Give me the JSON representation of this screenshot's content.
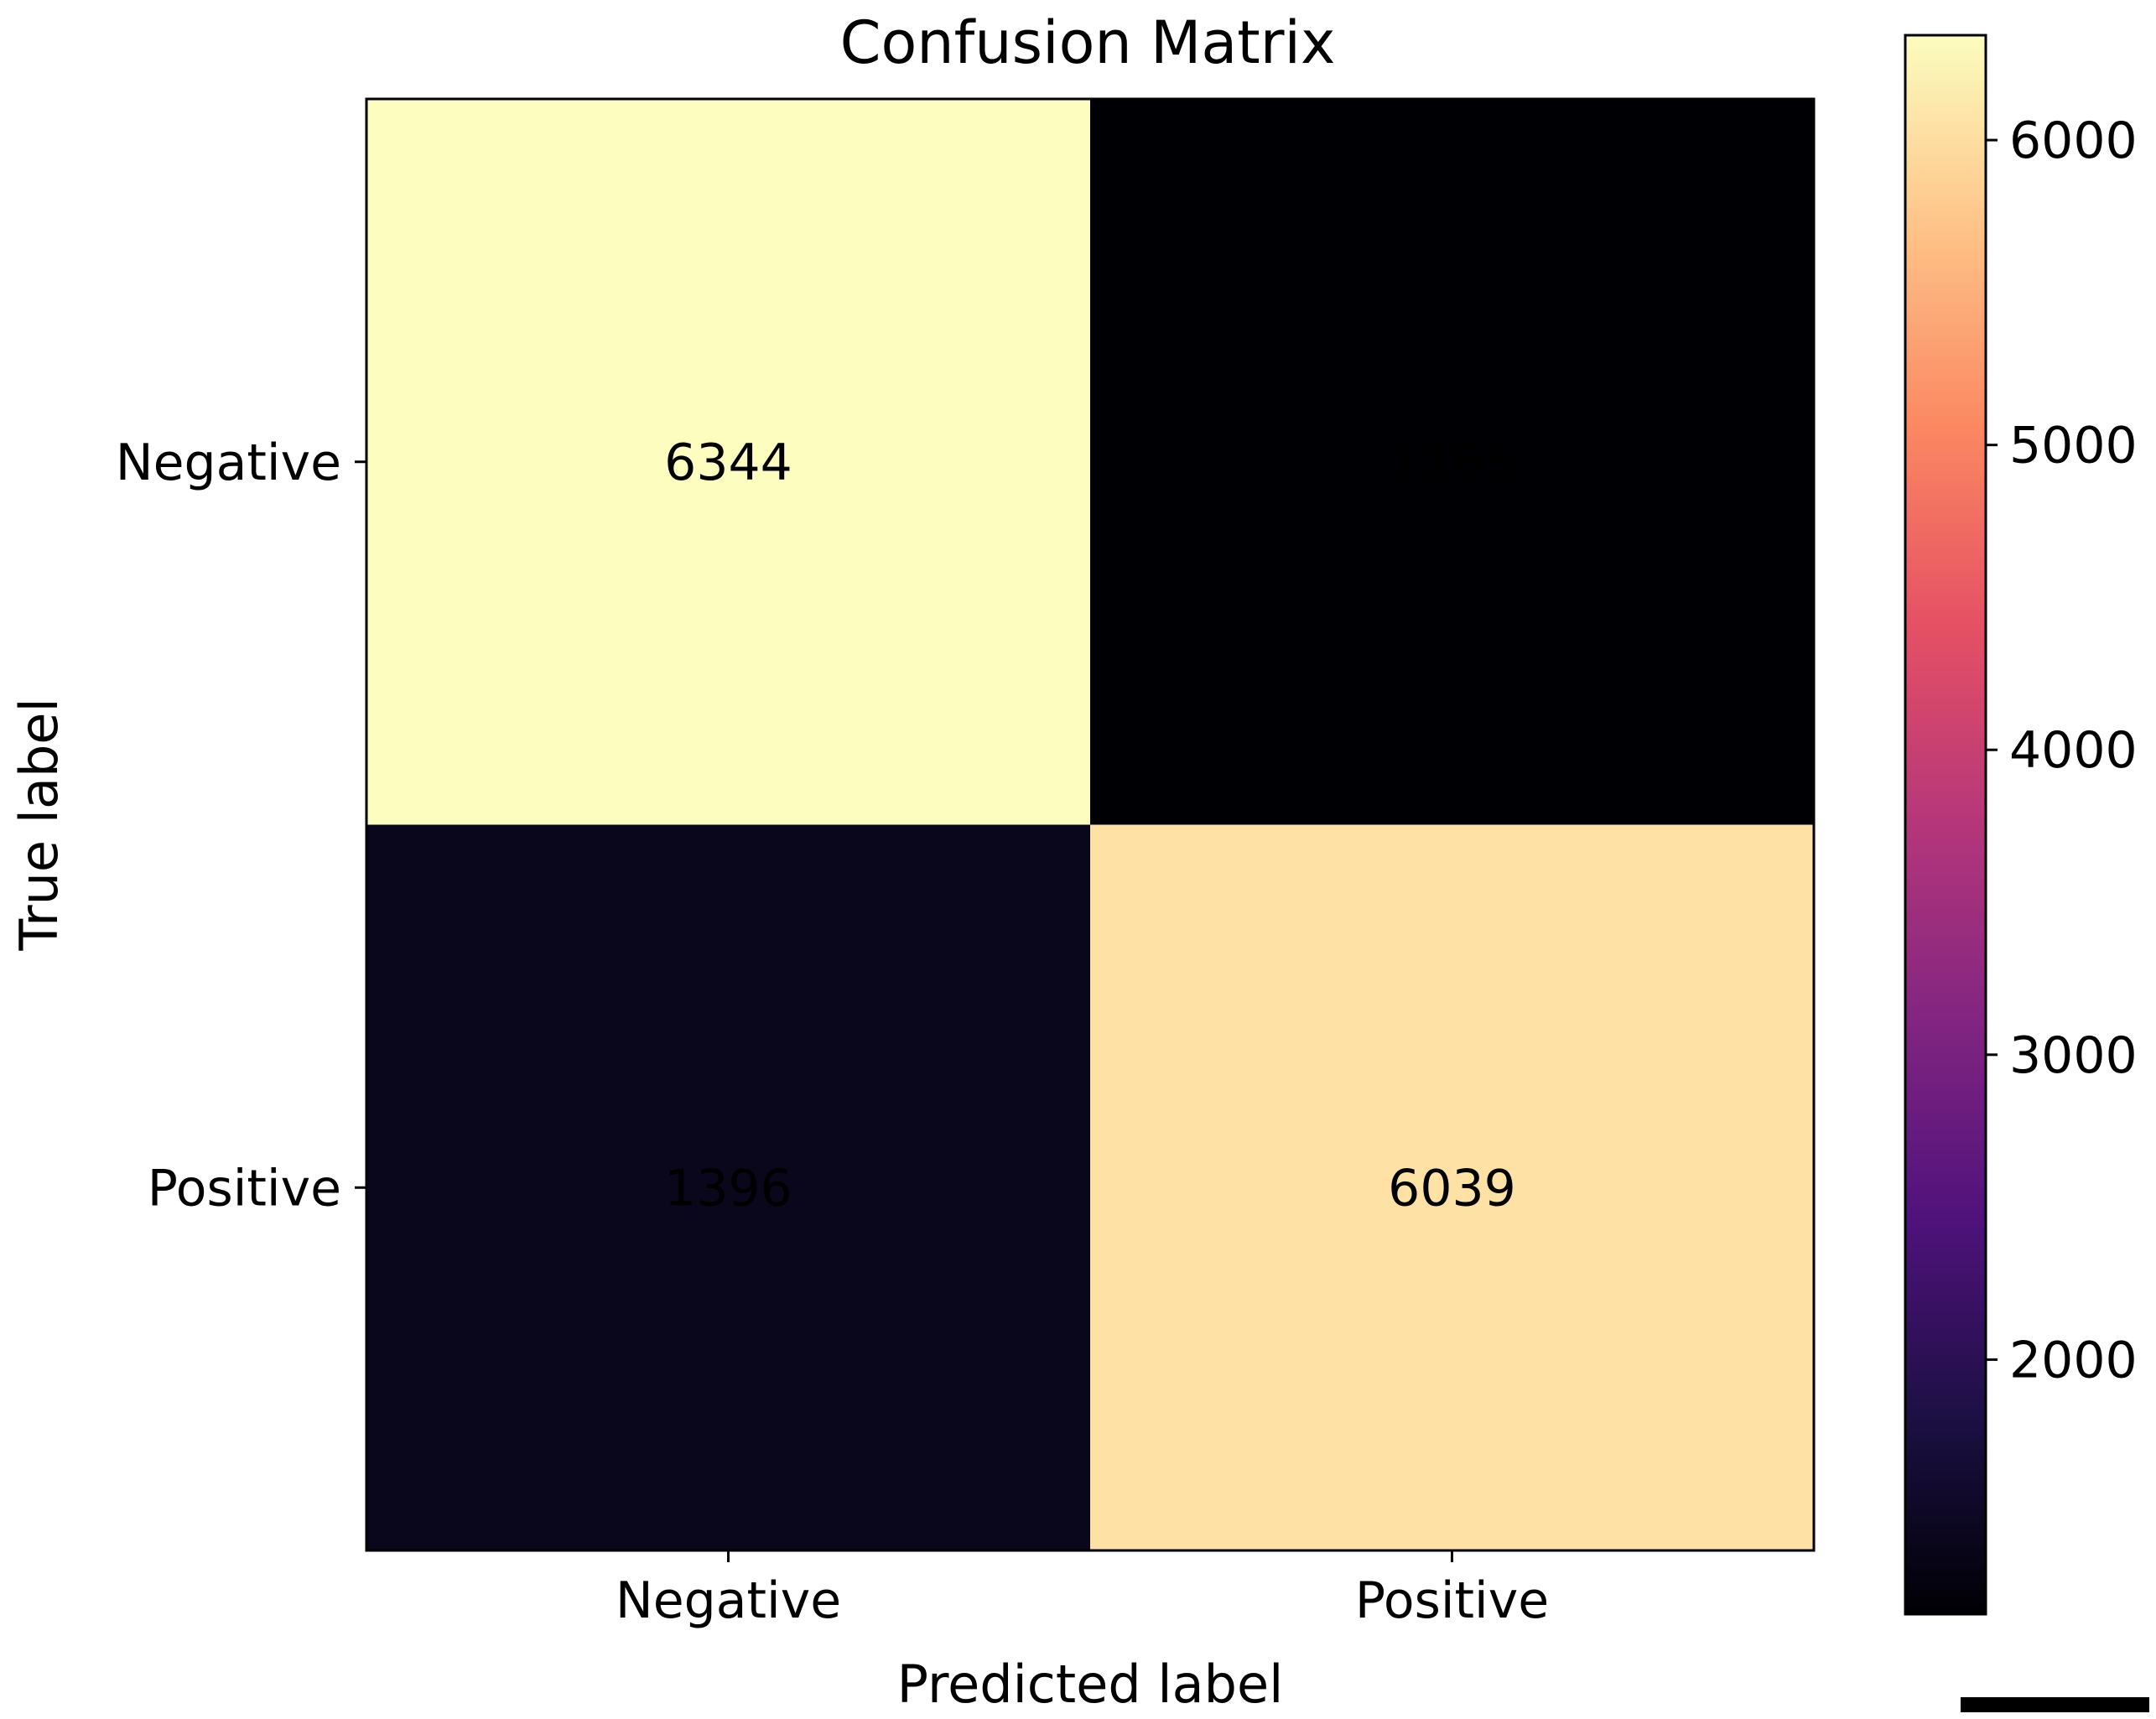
{
  "chart_data": {
    "type": "heatmap",
    "title": "Confusion Matrix",
    "xlabel": "Predicted label",
    "ylabel": "True label",
    "x_categories": [
      "Negative",
      "Positive"
    ],
    "y_categories": [
      "Negative",
      "Positive"
    ],
    "values": [
      [
        6344,
        1165
      ],
      [
        1396,
        6039
      ]
    ],
    "colormap": "magma",
    "colorbar": {
      "range": [
        1165,
        6344
      ],
      "ticks": [
        2000,
        3000,
        4000,
        5000,
        6000
      ],
      "tick_labels": [
        "2000",
        "3000",
        "4000",
        "5000",
        "6000"
      ]
    },
    "grid": false
  },
  "colors": {
    "magma_stops": [
      "#000004",
      "#1c1044",
      "#4f127b",
      "#812581",
      "#b5367a",
      "#e55064",
      "#fb8761",
      "#fec287",
      "#fcfdbf"
    ],
    "text_on_light": "#000000",
    "text_on_dark": "#fcfdbf"
  }
}
